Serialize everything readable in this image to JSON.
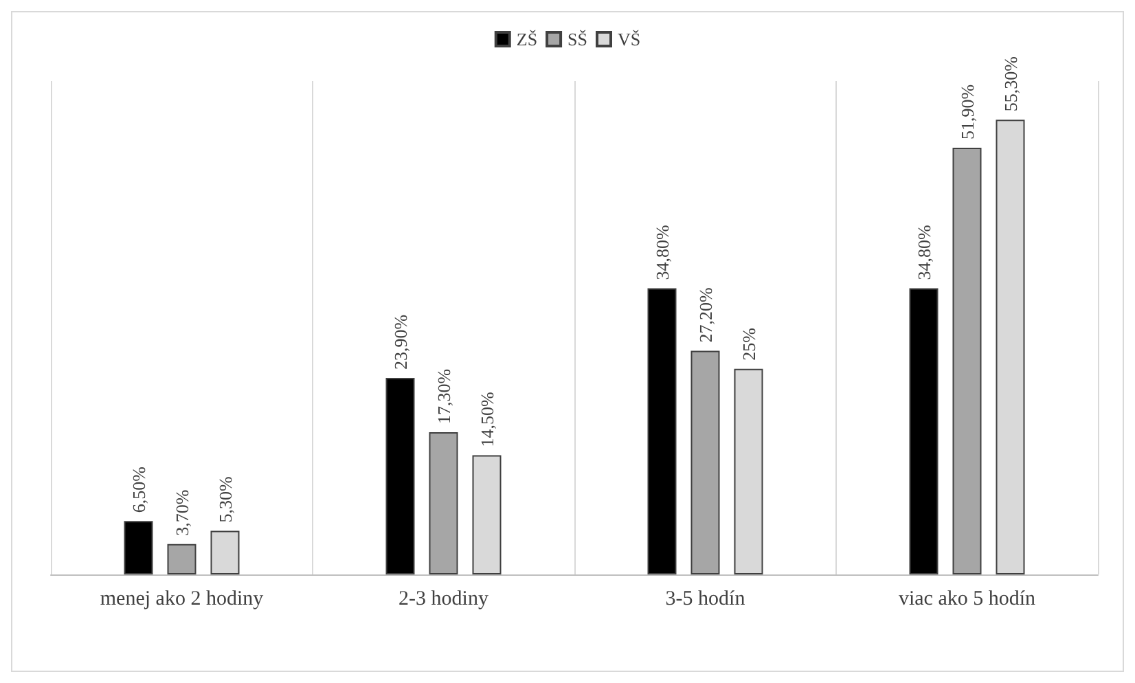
{
  "chart_data": {
    "type": "bar",
    "categories": [
      "menej ako 2 hodiny",
      "2-3 hodiny",
      "3-5 hodín",
      "viac ako 5 hodín"
    ],
    "series": [
      {
        "name": "ZŠ",
        "color": "#000000",
        "values": [
          6.5,
          23.9,
          34.8,
          34.8
        ],
        "value_labels": [
          "6,50%",
          "23,90%",
          "34,80%",
          "34,80%"
        ]
      },
      {
        "name": "SŠ",
        "color": "#a6a6a6",
        "values": [
          3.7,
          17.3,
          27.2,
          51.9
        ],
        "value_labels": [
          "3,70%",
          "17,30%",
          "27,20%",
          "51,90%"
        ]
      },
      {
        "name": "VŠ",
        "color": "#d9d9d9",
        "values": [
          5.3,
          14.5,
          25,
          55.3
        ],
        "value_labels": [
          "5,30%",
          "14,50%",
          "25%",
          "55,30%"
        ]
      }
    ],
    "legend": "top",
    "grid": "x"
  }
}
